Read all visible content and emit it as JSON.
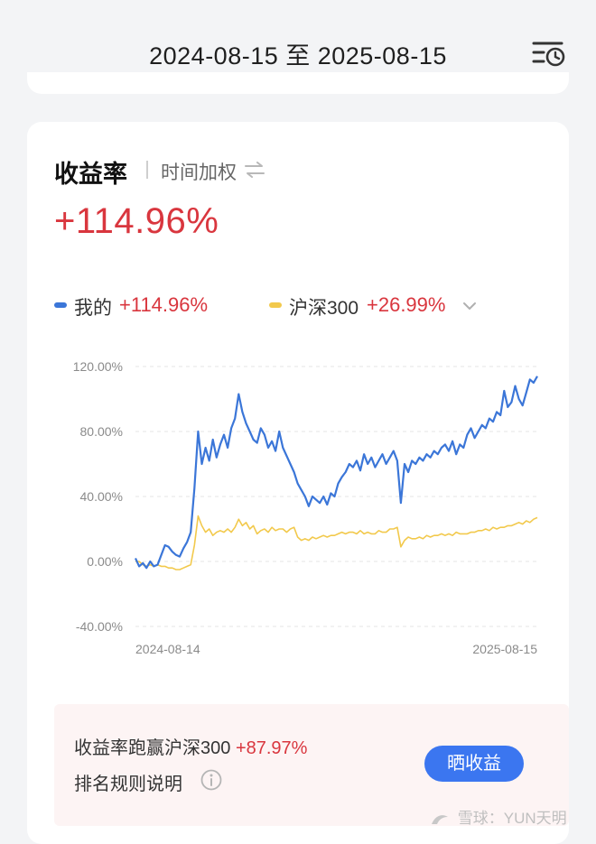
{
  "header": {
    "date_range": "2024-08-15 至 2025-08-15",
    "filter_icon": "calendar-clock-filter-icon"
  },
  "card": {
    "metric_title": "收益率",
    "method": "时间加权",
    "method_icon": "swap-icon",
    "big_return": "+114.96%"
  },
  "legend": {
    "mine_name": "我的",
    "mine_value": "+114.96%",
    "bench_name": "沪深300",
    "bench_value": "+26.99%",
    "dropdown_icon": "chevron-down-icon"
  },
  "colors": {
    "mine": "#3b76d8",
    "bench": "#f2c94c",
    "positive": "#d9363e",
    "accent": "#3b76f0"
  },
  "chart_data": {
    "type": "line",
    "ylim": [
      -40,
      120
    ],
    "yticks": [
      "120.00%",
      "80.00%",
      "40.00%",
      "0.00%",
      "-40.00%"
    ],
    "ytick_values": [
      120,
      80,
      40,
      0,
      -40
    ],
    "x_start_label": "2024-08-14",
    "x_end_label": "2025-08-15",
    "grid": true,
    "series": [
      {
        "name": "我的",
        "color": "#3b76d8",
        "values": [
          2,
          -3,
          -1,
          -4,
          0,
          -3,
          -2,
          4,
          10,
          9,
          6,
          4,
          3,
          8,
          12,
          18,
          45,
          80,
          60,
          70,
          62,
          75,
          64,
          72,
          78,
          70,
          82,
          88,
          103,
          92,
          85,
          80,
          75,
          73,
          82,
          78,
          70,
          74,
          68,
          80,
          70,
          65,
          60,
          55,
          48,
          44,
          40,
          34,
          40,
          38,
          36,
          40,
          35,
          42,
          40,
          48,
          52,
          55,
          60,
          58,
          62,
          56,
          66,
          60,
          64,
          58,
          62,
          66,
          60,
          64,
          68,
          62,
          36,
          60,
          55,
          62,
          60,
          64,
          62,
          66,
          64,
          68,
          66,
          70,
          72,
          68,
          74,
          66,
          72,
          70,
          78,
          82,
          76,
          80,
          84,
          82,
          88,
          86,
          92,
          90,
          105,
          95,
          98,
          108,
          100,
          96,
          104,
          112,
          110,
          114
        ]
      },
      {
        "name": "沪深300",
        "color": "#f2c94c",
        "values": [
          0,
          0,
          -2,
          -3,
          -2,
          -3,
          -2,
          -3,
          -3,
          -4,
          -4,
          -5,
          -5,
          -4,
          -3,
          -2,
          10,
          28,
          22,
          18,
          20,
          16,
          18,
          19,
          18,
          20,
          18,
          21,
          26,
          22,
          24,
          20,
          22,
          17,
          19,
          20,
          18,
          21,
          19,
          20,
          20,
          18,
          20,
          21,
          15,
          13,
          14,
          13,
          15,
          14,
          15,
          16,
          15,
          16,
          16,
          17,
          18,
          17,
          18,
          18,
          17,
          19,
          17,
          18,
          17,
          17,
          19,
          18,
          18,
          20,
          20,
          21,
          9,
          13,
          15,
          14,
          14,
          15,
          14,
          16,
          15,
          16,
          16,
          17,
          16,
          17,
          16,
          18,
          17,
          17,
          17,
          18,
          18,
          19,
          19,
          20,
          19,
          21,
          20,
          21,
          21,
          22,
          22,
          23,
          24,
          23,
          25,
          24,
          26,
          27
        ]
      }
    ]
  },
  "summary": {
    "beat_label": "收益率跑赢沪深300",
    "beat_value": "+87.97%",
    "rule_label": "排名规则说明",
    "info_icon": "info-icon",
    "share_button": "晒收益"
  },
  "watermark": {
    "text": "雪球：YUN天明",
    "logo_icon": "xueqiu-logo-icon"
  }
}
